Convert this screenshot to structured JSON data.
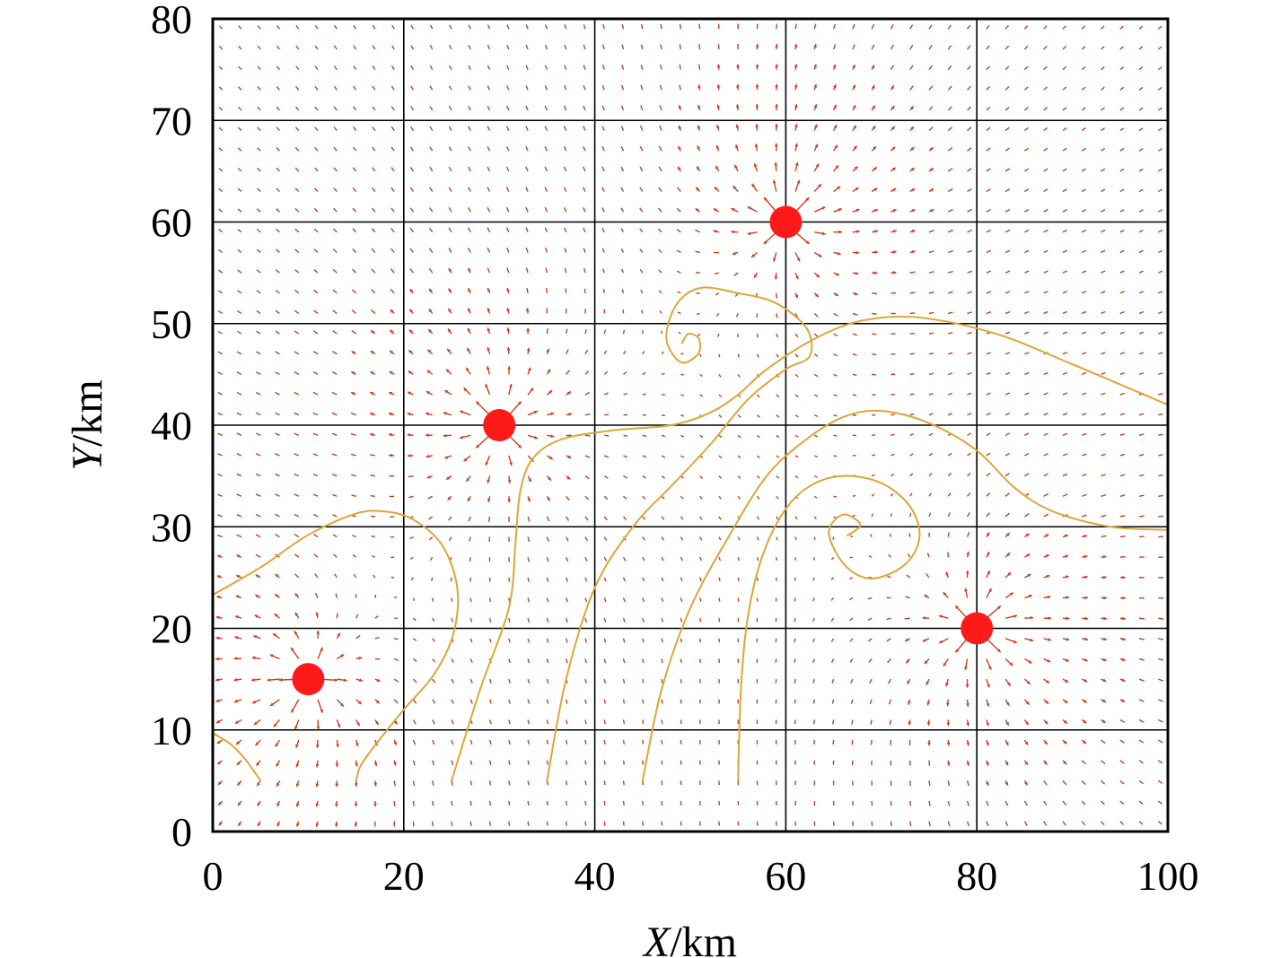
{
  "chart_data": {
    "type": "scatter",
    "title": "",
    "xlabel": {
      "var": "X",
      "unit": "/km"
    },
    "ylabel": {
      "var": "Y",
      "unit": "/km"
    },
    "xlim": [
      0,
      100
    ],
    "ylim": [
      0,
      80
    ],
    "x_ticks": [
      "0",
      "20",
      "40",
      "60",
      "80",
      "100"
    ],
    "y_ticks": [
      "0",
      "10",
      "20",
      "30",
      "40",
      "50",
      "60",
      "70",
      "80"
    ],
    "grid": true,
    "colors": {
      "sources": "#ff1a1a",
      "vector_field": "#c8401a",
      "streamlines": "#dca73a",
      "grid": "#000000"
    },
    "sources": [
      {
        "x": 10,
        "y": 15
      },
      {
        "x": 30,
        "y": 40
      },
      {
        "x": 60,
        "y": 60
      },
      {
        "x": 80,
        "y": 20
      }
    ],
    "streamline_seeds": [
      {
        "x": 15,
        "y": 5
      },
      {
        "x": 25,
        "y": 5
      },
      {
        "x": 35,
        "y": 5
      },
      {
        "x": 45,
        "y": 5
      },
      {
        "x": 55,
        "y": 5
      },
      {
        "x": 5,
        "y": 5
      }
    ],
    "streamlines": [
      [
        [
          0,
          23.3
        ],
        [
          5,
          26
        ],
        [
          10,
          29.2
        ],
        [
          15,
          31.3
        ],
        [
          18,
          31.5
        ],
        [
          21,
          30.7
        ],
        [
          24,
          28.2
        ],
        [
          25.6,
          24
        ],
        [
          25.2,
          19.5
        ],
        [
          23.2,
          15.5
        ],
        [
          20,
          12
        ],
        [
          17,
          8.5
        ],
        [
          15.5,
          6.5
        ],
        [
          15,
          5
        ]
      ],
      [
        [
          25,
          5
        ],
        [
          28,
          14
        ],
        [
          31,
          22
        ],
        [
          31.7,
          28.5
        ],
        [
          32.2,
          33.5
        ],
        [
          33.5,
          36.7
        ],
        [
          36.5,
          38.6
        ],
        [
          42,
          39.5
        ],
        [
          48,
          40
        ],
        [
          52,
          41.2
        ],
        [
          55,
          43
        ],
        [
          58,
          45.5
        ],
        [
          63,
          48.5
        ],
        [
          68,
          50.3
        ],
        [
          74,
          50.6
        ],
        [
          82,
          49
        ],
        [
          90,
          46
        ],
        [
          100,
          42
        ]
      ],
      [
        [
          35,
          5
        ],
        [
          37,
          15
        ],
        [
          40,
          24
        ],
        [
          44,
          30
        ],
        [
          48,
          34
        ],
        [
          52,
          38
        ],
        [
          56,
          42.5
        ],
        [
          60,
          45.5
        ],
        [
          62.5,
          46.8
        ],
        [
          62.2,
          49.5
        ],
        [
          59,
          52
        ],
        [
          55,
          53
        ],
        [
          51,
          53.5
        ],
        [
          48.5,
          51.8
        ],
        [
          47.5,
          48.5
        ],
        [
          49,
          46.2
        ],
        [
          50.8,
          47
        ],
        [
          50.9,
          48.5
        ],
        [
          49.8,
          49
        ],
        [
          49.1,
          48
        ]
      ],
      [
        [
          45,
          5
        ],
        [
          47,
          14
        ],
        [
          50,
          22
        ],
        [
          54,
          29
        ],
        [
          58,
          35
        ],
        [
          62,
          38.5
        ],
        [
          66,
          40.8
        ],
        [
          70,
          41.4
        ],
        [
          75,
          40.2
        ],
        [
          80,
          37.5
        ],
        [
          84,
          33.8
        ],
        [
          88,
          31.5
        ],
        [
          94,
          30
        ],
        [
          100,
          29.7
        ]
      ],
      [
        [
          55,
          5
        ],
        [
          55.3,
          14
        ],
        [
          56,
          21
        ],
        [
          57.5,
          27
        ],
        [
          59.8,
          31.5
        ],
        [
          62.5,
          34
        ],
        [
          66,
          35
        ],
        [
          70,
          34.3
        ],
        [
          73,
          32
        ],
        [
          74,
          29
        ],
        [
          72.5,
          26.3
        ],
        [
          69,
          24.9
        ],
        [
          66.2,
          26.2
        ],
        [
          64.5,
          29.4
        ],
        [
          66,
          31.2
        ],
        [
          67.8,
          30.2
        ],
        [
          66.4,
          29.1
        ]
      ],
      [
        [
          0,
          9.7
        ],
        [
          2,
          8.5
        ],
        [
          3.5,
          7
        ],
        [
          5,
          5
        ]
      ]
    ]
  }
}
